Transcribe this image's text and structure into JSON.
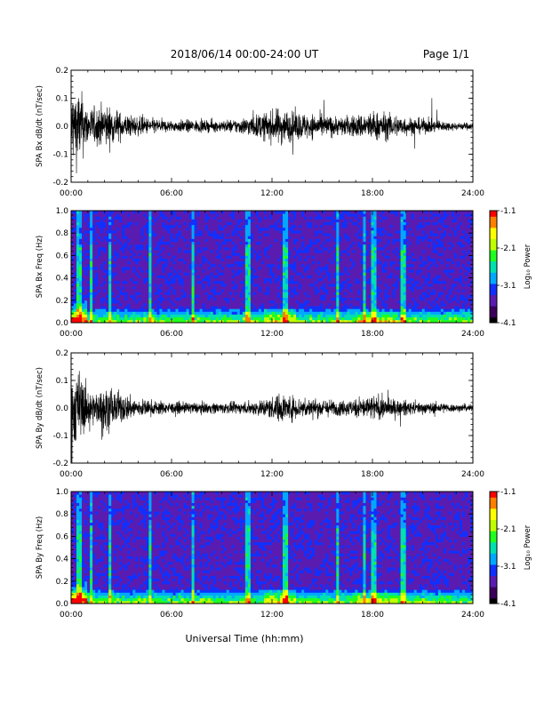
{
  "header": {
    "title": "2018/06/14  00:00-24:00 UT",
    "page": "Page 1/1"
  },
  "x_axis": {
    "ticks": [
      "00:00",
      "06:00",
      "12:00",
      "18:00",
      "24:00"
    ],
    "label": "Universal Time (hh:mm)"
  },
  "colorbar": {
    "ticks": [
      "-1.1",
      "-2.1",
      "-3.1",
      "-4.1"
    ],
    "label": "Log₁₀ Power"
  },
  "colors": {
    "colormap": [
      "#000000",
      "#3a005a",
      "#5a1cb0",
      "#1030ff",
      "#00a8ff",
      "#00e0b0",
      "#20ff20",
      "#c0ff00",
      "#ffff00",
      "#ff8000",
      "#ff0000"
    ]
  },
  "chart_data": [
    {
      "type": "line",
      "ylabel": "SPA Bx dB/dt (nT/sec)",
      "xlim": [
        0,
        24
      ],
      "ylim": [
        -0.2,
        0.2
      ],
      "yticks": [
        "0.2",
        "0.1",
        "0.0",
        "-0.1",
        "-0.2"
      ],
      "envelope": {
        "x_hours": [
          0,
          0.5,
          1,
          1.5,
          2,
          2.5,
          3,
          4,
          5,
          6,
          7,
          8,
          9,
          10,
          11,
          12,
          12.5,
          13,
          14,
          15,
          16,
          17,
          18,
          19,
          20,
          21,
          22,
          23,
          24
        ],
        "amplitude": [
          0.2,
          0.2,
          0.1,
          0.1,
          0.12,
          0.09,
          0.07,
          0.05,
          0.04,
          0.03,
          0.035,
          0.03,
          0.03,
          0.04,
          0.06,
          0.08,
          0.1,
          0.08,
          0.07,
          0.06,
          0.05,
          0.06,
          0.08,
          0.07,
          0.05,
          0.04,
          0.03,
          0.02,
          0.02
        ]
      }
    },
    {
      "type": "heatmap",
      "ylabel": "SPA Bx Freq (Hz)",
      "xlim": [
        0,
        24
      ],
      "ylim": [
        0.0,
        1.0
      ],
      "yticks": [
        "1.0",
        "0.8",
        "0.6",
        "0.4",
        "0.2",
        "0.0"
      ],
      "zlim": [
        -4.1,
        -1.1
      ],
      "bright_columns_hours": [
        0.5,
        1.2,
        2.3,
        4.7,
        7.3,
        10.6,
        12.8,
        15.9,
        17.5,
        18.1,
        19.8
      ]
    },
    {
      "type": "line",
      "ylabel": "SPA By dB/dt (nT/sec)",
      "xlim": [
        0,
        24
      ],
      "ylim": [
        -0.2,
        0.2
      ],
      "yticks": [
        "0.2",
        "0.1",
        "0.0",
        "-0.1",
        "-0.2"
      ],
      "envelope": {
        "x_hours": [
          0,
          0.5,
          1,
          1.5,
          2,
          2.5,
          3,
          4,
          5,
          6,
          7,
          8,
          9,
          10,
          11,
          12,
          12.5,
          13,
          14,
          15,
          16,
          17,
          18,
          19,
          20,
          21,
          22,
          23,
          24
        ],
        "amplitude": [
          0.2,
          0.2,
          0.1,
          0.08,
          0.12,
          0.1,
          0.08,
          0.05,
          0.04,
          0.03,
          0.03,
          0.03,
          0.03,
          0.03,
          0.04,
          0.06,
          0.08,
          0.07,
          0.05,
          0.05,
          0.04,
          0.05,
          0.07,
          0.05,
          0.04,
          0.03,
          0.03,
          0.02,
          0.02
        ]
      }
    },
    {
      "type": "heatmap",
      "ylabel": "SPA By Freq (Hz)",
      "xlim": [
        0,
        24
      ],
      "ylim": [
        0.0,
        1.0
      ],
      "yticks": [
        "1.0",
        "0.8",
        "0.6",
        "0.4",
        "0.2",
        "0.0"
      ],
      "zlim": [
        -4.1,
        -1.1
      ],
      "bright_columns_hours": [
        0.5,
        1.2,
        2.3,
        4.7,
        7.3,
        10.6,
        12.8,
        15.9,
        17.5,
        18.1,
        19.8
      ]
    }
  ]
}
